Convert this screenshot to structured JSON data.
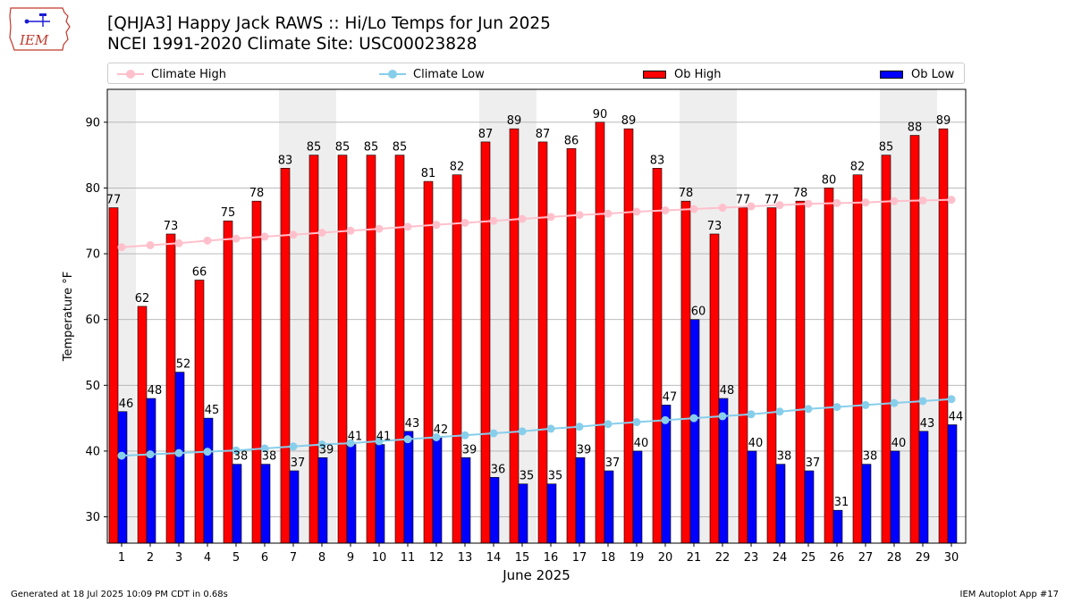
{
  "logo": {
    "text": "IEM"
  },
  "header": {
    "title_line1": "[QHJA3] Happy Jack RAWS :: Hi/Lo Temps for Jun 2025",
    "title_line2": "NCEI 1991-2020 Climate Site: USC00023828"
  },
  "legend": {
    "climate_high": "Climate High",
    "climate_low": "Climate Low",
    "ob_high": "Ob High",
    "ob_low": "Ob Low"
  },
  "colors": {
    "ob_high": "#ff0000",
    "ob_low": "#0000ff",
    "climate_high": "#ffc0cb",
    "climate_low": "#87ceeb",
    "weekend_band": "#eeeeee",
    "grid": "#b0b0b0"
  },
  "chart_data": {
    "type": "bar",
    "xlabel": "June 2025",
    "ylabel": "Temperature °F",
    "ylim": [
      26,
      95
    ],
    "yticks": [
      30,
      40,
      50,
      60,
      70,
      80,
      90
    ],
    "grid": "horizontal",
    "legend_position": "top",
    "categories": [
      1,
      2,
      3,
      4,
      5,
      6,
      7,
      8,
      9,
      10,
      11,
      12,
      13,
      14,
      15,
      16,
      17,
      18,
      19,
      20,
      21,
      22,
      23,
      24,
      25,
      26,
      27,
      28,
      29,
      30
    ],
    "weekend_days": [
      1,
      7,
      8,
      14,
      15,
      21,
      22,
      28,
      29
    ],
    "series": [
      {
        "name": "Ob High",
        "kind": "bar",
        "values": [
          77,
          62,
          73,
          66,
          75,
          78,
          83,
          85,
          85,
          85,
          85,
          81,
          82,
          87,
          89,
          87,
          86,
          90,
          89,
          83,
          78,
          73,
          77,
          77,
          78,
          80,
          82,
          85,
          88,
          89
        ]
      },
      {
        "name": "Ob Low",
        "kind": "bar",
        "values": [
          46,
          48,
          52,
          45,
          38,
          38,
          37,
          39,
          41,
          41,
          43,
          42,
          39,
          36,
          35,
          35,
          39,
          37,
          40,
          47,
          60,
          48,
          40,
          38,
          37,
          31,
          38,
          40,
          43,
          44
        ]
      },
      {
        "name": "Climate High",
        "kind": "line",
        "values": [
          71.0,
          71.3,
          71.6,
          72.0,
          72.3,
          72.6,
          72.9,
          73.2,
          73.5,
          73.8,
          74.1,
          74.4,
          74.7,
          75.0,
          75.3,
          75.6,
          75.9,
          76.1,
          76.4,
          76.6,
          76.8,
          77.0,
          77.2,
          77.4,
          77.6,
          77.7,
          77.8,
          78.0,
          78.1,
          78.2
        ]
      },
      {
        "name": "Climate Low",
        "kind": "line",
        "values": [
          39.3,
          39.5,
          39.7,
          39.9,
          40.1,
          40.4,
          40.7,
          41.0,
          41.2,
          41.5,
          41.8,
          42.1,
          42.4,
          42.7,
          43.0,
          43.4,
          43.7,
          44.1,
          44.4,
          44.7,
          45.0,
          45.3,
          45.6,
          46.0,
          46.4,
          46.7,
          47.0,
          47.3,
          47.6,
          47.9
        ]
      }
    ]
  },
  "footer": {
    "generated": "Generated at 18 Jul 2025 10:09 PM CDT in 0.68s",
    "app": "IEM Autoplot App #17"
  }
}
